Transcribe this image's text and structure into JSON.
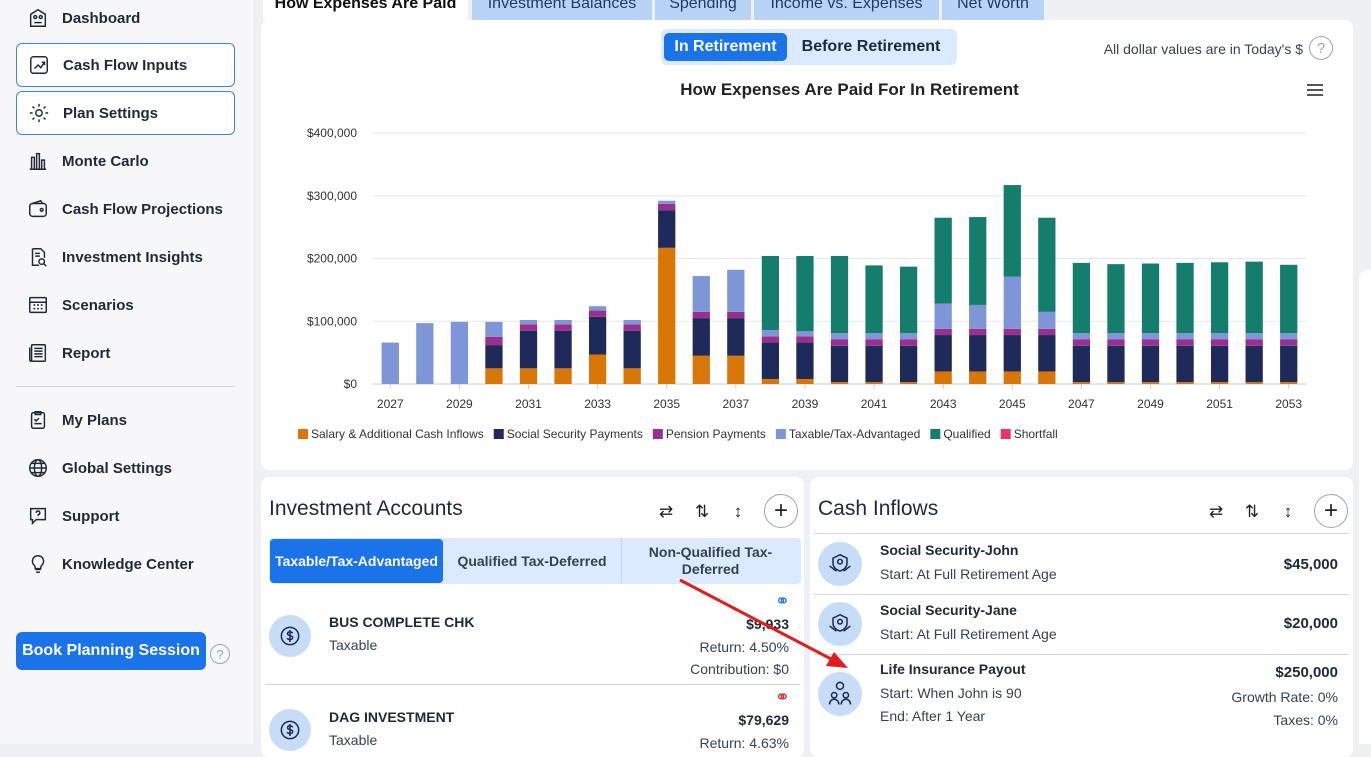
{
  "sidebar": {
    "items": [
      {
        "label": "Dashboard",
        "icon": "dashboard-icon"
      },
      {
        "label": "Cash Flow Inputs",
        "icon": "cash-flow-inputs-icon"
      },
      {
        "label": "Plan Settings",
        "icon": "gear-icon"
      },
      {
        "label": "Monte Carlo",
        "icon": "bar-chart-icon"
      },
      {
        "label": "Cash Flow Projections",
        "icon": "wallet-icon"
      },
      {
        "label": "Investment Insights",
        "icon": "document-search-icon"
      },
      {
        "label": "Scenarios",
        "icon": "calculator-icon"
      },
      {
        "label": "Report",
        "icon": "report-icon"
      }
    ],
    "items2": [
      {
        "label": "My Plans",
        "icon": "clipboard-icon"
      },
      {
        "label": "Global Settings",
        "icon": "globe-icon"
      },
      {
        "label": "Support",
        "icon": "chat-help-icon"
      },
      {
        "label": "Knowledge Center",
        "icon": "lightbulb-icon"
      }
    ],
    "book_label": "Book Planning Session",
    "help_glyph": "?"
  },
  "tabs": [
    "How Expenses Are Paid",
    "Investment Balances",
    "Spending",
    "Income vs. Expenses",
    "Net Worth"
  ],
  "toggle": {
    "in_retirement": "In Retirement",
    "before_retirement": "Before Retirement"
  },
  "dollar_note": "All dollar values are in Today's $",
  "chart_data": {
    "type": "bar",
    "stacked": true,
    "title": "How Expenses Are Paid For In Retirement",
    "categories": [
      "2027",
      "2028",
      "2029",
      "2030",
      "2031",
      "2032",
      "2033",
      "2034",
      "2035",
      "2036",
      "2037",
      "2038",
      "2039",
      "2040",
      "2041",
      "2042",
      "2043",
      "2044",
      "2045",
      "2046",
      "2047",
      "2048",
      "2049",
      "2050",
      "2051",
      "2052",
      "2053"
    ],
    "x_tick_labels": [
      "2027",
      "2029",
      "2031",
      "2033",
      "2035",
      "2037",
      "2039",
      "2041",
      "2043",
      "2045",
      "2047",
      "2049",
      "2051",
      "2053"
    ],
    "y_ticks": [
      "$0",
      "$100,000",
      "$200,000",
      "$300,000",
      "$400,000"
    ],
    "ylim": [
      0,
      400000
    ],
    "series": [
      {
        "name": "Salary & Additional Cash Inflows",
        "color": "#d97706",
        "values": [
          0,
          0,
          0,
          25000,
          25000,
          25000,
          47000,
          25000,
          217000,
          45000,
          45000,
          8000,
          8000,
          3000,
          3000,
          3000,
          20000,
          20000,
          20000,
          20000,
          3000,
          3000,
          3000,
          3000,
          3000,
          3000,
          3000
        ]
      },
      {
        "name": "Social Security Payments",
        "color": "#1e2a5a",
        "values": [
          0,
          0,
          0,
          37000,
          60000,
          60000,
          60000,
          60000,
          60000,
          60000,
          60000,
          58000,
          58000,
          58000,
          58000,
          58000,
          58000,
          58000,
          58000,
          58000,
          58000,
          58000,
          58000,
          58000,
          58000,
          58000,
          58000
        ]
      },
      {
        "name": "Pension Payments",
        "color": "#9b2f8f",
        "values": [
          0,
          0,
          0,
          13000,
          10000,
          10000,
          10000,
          10000,
          10000,
          10000,
          10000,
          10000,
          10000,
          10000,
          10000,
          10000,
          10000,
          10000,
          10000,
          10000,
          10000,
          10000,
          10000,
          10000,
          10000,
          10000,
          10000
        ]
      },
      {
        "name": "Taxable/Tax-Advantaged",
        "color": "#7e95d8",
        "values": [
          66000,
          97000,
          99000,
          24000,
          7000,
          7000,
          7000,
          7000,
          5000,
          57000,
          67000,
          10000,
          8000,
          10000,
          10000,
          10000,
          40000,
          38000,
          83000,
          27000,
          10000,
          10000,
          10000,
          10000,
          10000,
          10000,
          10000
        ]
      },
      {
        "name": "Qualified",
        "color": "#147d6c",
        "values": [
          0,
          0,
          0,
          0,
          0,
          0,
          0,
          0,
          0,
          0,
          0,
          118000,
          120000,
          123000,
          108000,
          106000,
          137000,
          140000,
          146000,
          150000,
          112000,
          110000,
          111000,
          112000,
          113000,
          114000,
          109000
        ]
      },
      {
        "name": "Shortfall",
        "color": "#e8336b",
        "values": [
          0,
          0,
          0,
          0,
          0,
          0,
          0,
          0,
          0,
          0,
          0,
          0,
          0,
          0,
          0,
          0,
          0,
          0,
          0,
          0,
          0,
          0,
          0,
          0,
          0,
          0,
          0
        ]
      }
    ]
  },
  "investment_accounts": {
    "title": "Investment Accounts",
    "tabs": [
      "Taxable/Tax-Advantaged",
      "Qualified Tax-Deferred",
      "Non-Qualified Tax-Deferred"
    ],
    "rows": [
      {
        "name": "BUS COMPLETE CHK",
        "type": "Taxable",
        "value": "$9,933",
        "return": "Return: 4.50%",
        "contribution": "Contribution: $0",
        "link_icon": "link-icon"
      },
      {
        "name": "DAG INVESTMENT",
        "type": "Taxable",
        "value": "$79,629",
        "return": "Return: 4.63%",
        "link_icon": "unlink-icon"
      }
    ]
  },
  "cash_inflows": {
    "title": "Cash Inflows",
    "rows": [
      {
        "name": "Social Security-John",
        "start": "Start: At Full Retirement Age",
        "value": "$45,000"
      },
      {
        "name": "Social Security-Jane",
        "start": "Start: At Full Retirement Age",
        "value": "$20,000"
      },
      {
        "name": "Life Insurance Payout",
        "start": "Start: When John is 90",
        "end": "End: After 1 Year",
        "value": "$250,000",
        "growth": "Growth Rate: 0%",
        "taxes": "Taxes: 0%"
      }
    ]
  },
  "colors": {
    "accent": "#1a73e8",
    "arrow": "#e11d1d"
  }
}
